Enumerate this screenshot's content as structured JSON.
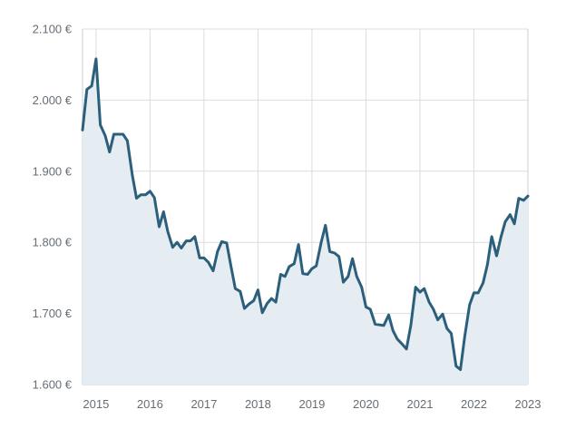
{
  "chart_data": {
    "type": "area",
    "y_ticks": [
      {
        "value": 1600,
        "label": "1.600 €"
      },
      {
        "value": 1700,
        "label": "1.700 €"
      },
      {
        "value": 1800,
        "label": "1.800 €"
      },
      {
        "value": 1900,
        "label": "1.900 €"
      },
      {
        "value": 2000,
        "label": "2.000 €"
      },
      {
        "value": 2100,
        "label": "2.100 €"
      }
    ],
    "x_ticks": [
      {
        "value": 2015,
        "label": "2015"
      },
      {
        "value": 2016,
        "label": "2016"
      },
      {
        "value": 2017,
        "label": "2017"
      },
      {
        "value": 2018,
        "label": "2018"
      },
      {
        "value": 2019,
        "label": "2019"
      },
      {
        "value": 2020,
        "label": "2020"
      },
      {
        "value": 2021,
        "label": "2021"
      },
      {
        "value": 2022,
        "label": "2022"
      },
      {
        "value": 2023,
        "label": "2023"
      }
    ],
    "xlim": [
      2014.75,
      2023.0
    ],
    "ylim": [
      1600,
      2100
    ],
    "grid": true,
    "legend": "none",
    "colors": {
      "line": "#2c5f7c",
      "fill": "#e6edf2",
      "grid": "#d8dde1",
      "axis": "#c9cfd4",
      "text": "#666e75"
    },
    "series": [
      {
        "points": [
          [
            2014.75,
            1958
          ],
          [
            2014.83,
            2015
          ],
          [
            2014.92,
            2020
          ],
          [
            2015.0,
            2058
          ],
          [
            2015.08,
            1965
          ],
          [
            2015.17,
            1950
          ],
          [
            2015.25,
            1927
          ],
          [
            2015.33,
            1952
          ],
          [
            2015.42,
            1952
          ],
          [
            2015.5,
            1952
          ],
          [
            2015.58,
            1943
          ],
          [
            2015.67,
            1895
          ],
          [
            2015.75,
            1862
          ],
          [
            2015.83,
            1867
          ],
          [
            2015.92,
            1867
          ],
          [
            2016.0,
            1872
          ],
          [
            2016.08,
            1863
          ],
          [
            2016.17,
            1822
          ],
          [
            2016.25,
            1843
          ],
          [
            2016.33,
            1815
          ],
          [
            2016.42,
            1793
          ],
          [
            2016.5,
            1800
          ],
          [
            2016.58,
            1792
          ],
          [
            2016.67,
            1802
          ],
          [
            2016.75,
            1802
          ],
          [
            2016.83,
            1808
          ],
          [
            2016.92,
            1778
          ],
          [
            2017.0,
            1778
          ],
          [
            2017.08,
            1772
          ],
          [
            2017.17,
            1760
          ],
          [
            2017.25,
            1787
          ],
          [
            2017.33,
            1801
          ],
          [
            2017.42,
            1799
          ],
          [
            2017.5,
            1766
          ],
          [
            2017.58,
            1735
          ],
          [
            2017.67,
            1731
          ],
          [
            2017.75,
            1707
          ],
          [
            2017.83,
            1713
          ],
          [
            2017.92,
            1718
          ],
          [
            2018.0,
            1733
          ],
          [
            2018.08,
            1701
          ],
          [
            2018.17,
            1714
          ],
          [
            2018.25,
            1721
          ],
          [
            2018.33,
            1716
          ],
          [
            2018.42,
            1755
          ],
          [
            2018.5,
            1752
          ],
          [
            2018.58,
            1766
          ],
          [
            2018.67,
            1770
          ],
          [
            2018.75,
            1797
          ],
          [
            2018.83,
            1756
          ],
          [
            2018.92,
            1755
          ],
          [
            2019.0,
            1763
          ],
          [
            2019.08,
            1767
          ],
          [
            2019.17,
            1800
          ],
          [
            2019.25,
            1824
          ],
          [
            2019.33,
            1787
          ],
          [
            2019.42,
            1785
          ],
          [
            2019.5,
            1780
          ],
          [
            2019.58,
            1744
          ],
          [
            2019.67,
            1752
          ],
          [
            2019.75,
            1777
          ],
          [
            2019.83,
            1752
          ],
          [
            2019.92,
            1737
          ],
          [
            2020.0,
            1709
          ],
          [
            2020.08,
            1706
          ],
          [
            2020.17,
            1685
          ],
          [
            2020.25,
            1684
          ],
          [
            2020.33,
            1683
          ],
          [
            2020.42,
            1698
          ],
          [
            2020.5,
            1676
          ],
          [
            2020.58,
            1664
          ],
          [
            2020.67,
            1657
          ],
          [
            2020.75,
            1650
          ],
          [
            2020.83,
            1683
          ],
          [
            2020.92,
            1737
          ],
          [
            2021.0,
            1730
          ],
          [
            2021.08,
            1735
          ],
          [
            2021.17,
            1716
          ],
          [
            2021.25,
            1706
          ],
          [
            2021.33,
            1691
          ],
          [
            2021.42,
            1699
          ],
          [
            2021.5,
            1679
          ],
          [
            2021.58,
            1672
          ],
          [
            2021.67,
            1626
          ],
          [
            2021.75,
            1621
          ],
          [
            2021.83,
            1668
          ],
          [
            2021.92,
            1712
          ],
          [
            2022.0,
            1729
          ],
          [
            2022.08,
            1729
          ],
          [
            2022.17,
            1743
          ],
          [
            2022.25,
            1769
          ],
          [
            2022.33,
            1808
          ],
          [
            2022.42,
            1781
          ],
          [
            2022.5,
            1807
          ],
          [
            2022.58,
            1829
          ],
          [
            2022.67,
            1839
          ],
          [
            2022.75,
            1826
          ],
          [
            2022.83,
            1862
          ],
          [
            2022.92,
            1859
          ],
          [
            2023.0,
            1865
          ]
        ]
      }
    ]
  }
}
